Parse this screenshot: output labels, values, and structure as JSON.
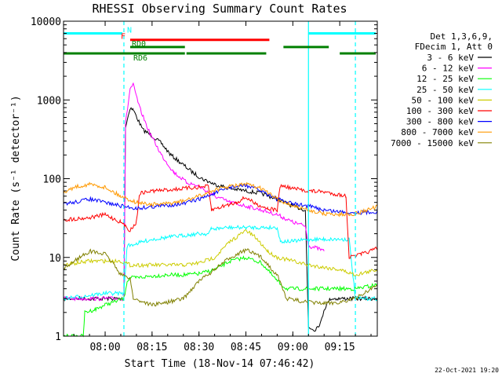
{
  "chart_data": {
    "type": "line",
    "title": "RHESSI Observing Summary Count Rates",
    "xlabel": "Start Time (18-Nov-14 07:46:42)",
    "ylabel": "Count Rate (s⁻¹ detector⁻¹)",
    "yscale": "log",
    "ylim": [
      1,
      10000
    ],
    "xlim": [
      "07:46:42",
      "09:27:00"
    ],
    "x_ticks": [
      "08:00",
      "08:15",
      "08:30",
      "08:45",
      "09:00",
      "09:15"
    ],
    "y_ticks": [
      "1",
      "10",
      "100",
      "1000",
      "10000"
    ],
    "grid": false,
    "legend_position": "right",
    "legend_header": [
      "Det 1,3,6,9,",
      "FDecim 1, Att 0"
    ],
    "date_stamp": "22-Oct-2021 19:20",
    "background": "#ffffff",
    "series": [
      {
        "name": "3 - 6 keV",
        "color": "#000000",
        "points": [
          [
            "07:46:42",
            3
          ],
          [
            "08:00:00",
            3
          ],
          [
            "08:06:00",
            3
          ],
          [
            "08:06:30",
            450
          ],
          [
            "08:08:00",
            800
          ],
          [
            "08:09:00",
            750
          ],
          [
            "08:12:00",
            420
          ],
          [
            "08:15:00",
            350
          ],
          [
            "08:18:00",
            280
          ],
          [
            "08:21:00",
            200
          ],
          [
            "08:25:00",
            150
          ],
          [
            "08:28:00",
            120
          ],
          [
            "08:31:00",
            100
          ],
          [
            "08:35:00",
            85
          ],
          [
            "08:40:00",
            75
          ],
          [
            "08:45:00",
            70
          ],
          [
            "08:50:00",
            65
          ],
          [
            "08:55:00",
            55
          ],
          [
            "09:00:00",
            45
          ],
          [
            "09:04:00",
            40
          ],
          [
            "09:05:00",
            1.3
          ],
          [
            "09:07:00",
            1.2
          ],
          [
            "09:09:00",
            1.5
          ],
          [
            "09:10:00",
            2.2
          ],
          [
            "09:12:00",
            3
          ],
          [
            "09:18:00",
            3
          ],
          [
            "09:27:00",
            3
          ]
        ]
      },
      {
        "name": "6 - 12 keV",
        "color": "#ff00ff",
        "points": [
          [
            "07:46:42",
            3
          ],
          [
            "08:06:00",
            3
          ],
          [
            "08:06:30",
            500
          ],
          [
            "08:08:00",
            1400
          ],
          [
            "08:09:00",
            1550
          ],
          [
            "08:11:00",
            800
          ],
          [
            "08:14:00",
            400
          ],
          [
            "08:18:00",
            200
          ],
          [
            "08:22:00",
            120
          ],
          [
            "08:26:00",
            90
          ],
          [
            "08:30:00",
            80
          ],
          [
            "08:35:00",
            60
          ],
          [
            "08:40:00",
            50
          ],
          [
            "08:45:00",
            45
          ],
          [
            "08:50:00",
            40
          ],
          [
            "08:55:00",
            35
          ],
          [
            "09:00:00",
            28
          ],
          [
            "09:04:00",
            25
          ],
          [
            "09:05:00",
            14
          ],
          [
            "09:08:00",
            13
          ],
          [
            "09:10:00",
            12
          ]
        ]
      },
      {
        "name": "12 - 25 keV",
        "color": "#00ff00",
        "points": [
          [
            "07:46:42",
            1
          ],
          [
            "07:53:00",
            1
          ],
          [
            "07:53:30",
            2
          ],
          [
            "07:57:00",
            2.2
          ],
          [
            "08:00:00",
            2.5
          ],
          [
            "08:06:00",
            3
          ],
          [
            "08:07:00",
            5
          ],
          [
            "08:08:00",
            5.5
          ],
          [
            "08:10:00",
            5.5
          ],
          [
            "08:15:00",
            5.8
          ],
          [
            "08:20:00",
            6
          ],
          [
            "08:25:00",
            6
          ],
          [
            "08:30:00",
            6.2
          ],
          [
            "08:35:00",
            7
          ],
          [
            "08:40:00",
            9
          ],
          [
            "08:45:00",
            10
          ],
          [
            "08:50:00",
            8.5
          ],
          [
            "08:55:00",
            5
          ],
          [
            "08:58:00",
            4
          ],
          [
            "09:05:00",
            4
          ],
          [
            "09:10:00",
            4
          ],
          [
            "09:20:00",
            4
          ],
          [
            "09:27:00",
            4.5
          ]
        ]
      },
      {
        "name": "25 - 50 keV",
        "color": "#00ffff",
        "points": [
          [
            "07:46:42",
            3
          ],
          [
            "07:55:00",
            3.3
          ],
          [
            "08:00:00",
            3.5
          ],
          [
            "08:06:00",
            3.5
          ],
          [
            "08:07:00",
            14
          ],
          [
            "08:10:00",
            15
          ],
          [
            "08:15:00",
            17
          ],
          [
            "08:20:00",
            18
          ],
          [
            "08:25:00",
            19
          ],
          [
            "08:30:00",
            20
          ],
          [
            "08:33:00",
            20
          ],
          [
            "08:34:00",
            23
          ],
          [
            "08:40:00",
            24
          ],
          [
            "08:45:00",
            24
          ],
          [
            "08:50:00",
            24
          ],
          [
            "08:55:00",
            24
          ],
          [
            "08:56:00",
            16
          ],
          [
            "09:00:00",
            16
          ],
          [
            "09:05:00",
            17
          ],
          [
            "09:10:00",
            17
          ],
          [
            "09:18:00",
            17
          ],
          [
            "09:20:00",
            3
          ],
          [
            "09:27:00",
            3
          ]
        ]
      },
      {
        "name": "50 - 100 keV",
        "color": "#cccc00",
        "points": [
          [
            "07:46:42",
            8
          ],
          [
            "07:55:00",
            9
          ],
          [
            "08:00:00",
            9
          ],
          [
            "08:05:00",
            9
          ],
          [
            "08:08:00",
            8
          ],
          [
            "08:10:00",
            8
          ],
          [
            "08:15:00",
            8
          ],
          [
            "08:20:00",
            8
          ],
          [
            "08:25:00",
            8
          ],
          [
            "08:30:00",
            8.5
          ],
          [
            "08:35:00",
            10
          ],
          [
            "08:40:00",
            16
          ],
          [
            "08:45:00",
            22
          ],
          [
            "08:48:00",
            18
          ],
          [
            "08:52:00",
            12
          ],
          [
            "08:55:00",
            10
          ],
          [
            "09:00:00",
            9
          ],
          [
            "09:05:00",
            8
          ],
          [
            "09:15:00",
            7
          ],
          [
            "09:20:00",
            6
          ],
          [
            "09:27:00",
            7
          ]
        ]
      },
      {
        "name": "100 - 300 keV",
        "color": "#ff0000",
        "points": [
          [
            "07:46:42",
            30
          ],
          [
            "07:55:00",
            32
          ],
          [
            "08:00:00",
            35
          ],
          [
            "08:05:00",
            28
          ],
          [
            "08:08:00",
            22
          ],
          [
            "08:10:00",
            28
          ],
          [
            "08:11:00",
            65
          ],
          [
            "08:15:00",
            70
          ],
          [
            "08:20:00",
            72
          ],
          [
            "08:25:00",
            75
          ],
          [
            "08:30:00",
            78
          ],
          [
            "08:33:00",
            80
          ],
          [
            "08:34:00",
            40
          ],
          [
            "08:38:00",
            45
          ],
          [
            "08:42:00",
            50
          ],
          [
            "08:45:00",
            58
          ],
          [
            "08:48:00",
            48
          ],
          [
            "08:52:00",
            42
          ],
          [
            "08:55:00",
            40
          ],
          [
            "08:56:00",
            82
          ],
          [
            "09:00:00",
            75
          ],
          [
            "09:05:00",
            70
          ],
          [
            "09:10:00",
            68
          ],
          [
            "09:17:00",
            60
          ],
          [
            "09:18:00",
            10
          ],
          [
            "09:22:00",
            11
          ],
          [
            "09:27:00",
            13
          ]
        ]
      },
      {
        "name": "300 - 800 keV",
        "color": "#0000ff",
        "points": [
          [
            "07:46:42",
            48
          ],
          [
            "07:50:00",
            50
          ],
          [
            "07:55:00",
            55
          ],
          [
            "08:00:00",
            50
          ],
          [
            "08:05:00",
            45
          ],
          [
            "08:10:00",
            42
          ],
          [
            "08:15:00",
            44
          ],
          [
            "08:20:00",
            46
          ],
          [
            "08:25:00",
            48
          ],
          [
            "08:30:00",
            55
          ],
          [
            "08:35:00",
            65
          ],
          [
            "08:40:00",
            78
          ],
          [
            "08:45:00",
            82
          ],
          [
            "08:50:00",
            70
          ],
          [
            "08:55:00",
            55
          ],
          [
            "09:00:00",
            48
          ],
          [
            "09:05:00",
            45
          ],
          [
            "09:10:00",
            40
          ],
          [
            "09:15:00",
            38
          ],
          [
            "09:20:00",
            37
          ],
          [
            "09:27:00",
            38
          ]
        ]
      },
      {
        "name": "800 - 7000 keV",
        "color": "#ff9900",
        "points": [
          [
            "07:46:42",
            65
          ],
          [
            "07:50:00",
            78
          ],
          [
            "07:55:00",
            85
          ],
          [
            "08:00:00",
            78
          ],
          [
            "08:05:00",
            60
          ],
          [
            "08:10:00",
            50
          ],
          [
            "08:15:00",
            47
          ],
          [
            "08:20:00",
            48
          ],
          [
            "08:25:00",
            52
          ],
          [
            "08:30:00",
            60
          ],
          [
            "08:35:00",
            72
          ],
          [
            "08:40:00",
            80
          ],
          [
            "08:45:00",
            85
          ],
          [
            "08:50:00",
            75
          ],
          [
            "08:55:00",
            55
          ],
          [
            "09:00:00",
            45
          ],
          [
            "09:05:00",
            40
          ],
          [
            "09:10:00",
            36
          ],
          [
            "09:15:00",
            35
          ],
          [
            "09:20:00",
            36
          ],
          [
            "09:27:00",
            44
          ]
        ]
      },
      {
        "name": "7000 - 15000 keV",
        "color": "#808000",
        "points": [
          [
            "07:46:42",
            7
          ],
          [
            "07:50:00",
            9
          ],
          [
            "07:55:00",
            12
          ],
          [
            "08:00:00",
            11
          ],
          [
            "08:03:00",
            8
          ],
          [
            "08:05:00",
            6
          ],
          [
            "08:08:00",
            5.5
          ],
          [
            "08:09:00",
            3
          ],
          [
            "08:15:00",
            2.5
          ],
          [
            "08:20:00",
            2.7
          ],
          [
            "08:25:00",
            3
          ],
          [
            "08:30:00",
            5
          ],
          [
            "08:35:00",
            7
          ],
          [
            "08:40:00",
            10
          ],
          [
            "08:45:00",
            12.5
          ],
          [
            "08:50:00",
            10
          ],
          [
            "08:55:00",
            6
          ],
          [
            "08:58:00",
            3
          ],
          [
            "09:05:00",
            2.7
          ],
          [
            "09:10:00",
            2.6
          ],
          [
            "09:15:00",
            2.7
          ],
          [
            "09:20:00",
            3
          ],
          [
            "09:27:00",
            4.5
          ]
        ]
      }
    ],
    "flag_bars": [
      {
        "label": "N",
        "color": "#00ffff",
        "level": 7000,
        "segments": [
          [
            "07:46:42",
            "08:06:00"
          ],
          [
            "09:05:00",
            "09:27:00"
          ]
        ]
      },
      {
        "label": "F",
        "color": "#ff0000",
        "level": 5800,
        "segments": [
          [
            "08:08:00",
            "08:53:00"
          ]
        ]
      },
      {
        "label": "RD0",
        "color": "#008000",
        "level": 4700,
        "segments": [
          [
            "08:08:00",
            "08:26:00"
          ],
          [
            "08:57:00",
            "09:12:00"
          ]
        ]
      },
      {
        "label": "RD6",
        "color": "#008000",
        "level": 3900,
        "segments": [
          [
            "07:46:42",
            "08:26:00"
          ],
          [
            "08:26:00",
            "08:52:00"
          ],
          [
            "09:15:00",
            "09:27:00"
          ]
        ]
      }
    ],
    "vertical_markers": [
      {
        "color": "#00ffff",
        "style": "dashed",
        "x": "08:06:00"
      },
      {
        "color": "#00ffff",
        "style": "solid",
        "x": "09:05:00"
      },
      {
        "color": "#00ffff",
        "style": "dashed",
        "x": "09:20:00"
      }
    ]
  }
}
